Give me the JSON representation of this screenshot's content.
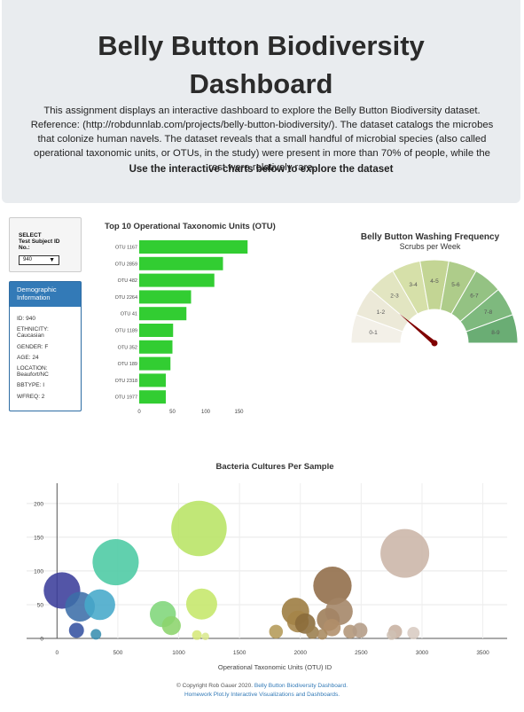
{
  "header": {
    "title_line1": "Belly Button Biodiversity",
    "title_line2": "Dashboard",
    "description": "This assignment displays an interactive dashboard to explore the Belly Button Biodiversity dataset. Reference: (http://robdunnlab.com/projects/belly-button-biodiversity/). The dataset catalogs the microbes that colonize human navels. The dataset reveals that a small handful of microbial species (also called operational taxonomic units, or OTUs, in the study) were present in more than 70% of people, while the rest were relatively rare.",
    "cta": "Use the interactive charts below to explore the dataset"
  },
  "selector": {
    "label_line1": "SELECT",
    "label_line2": "Test Subject ID",
    "label_line3": "No.:",
    "selected": "940",
    "arrow": "▼"
  },
  "demographics": {
    "heading_line1": "Demographic",
    "heading_line2": "Information",
    "id": "ID: 940",
    "ethnicity_label": "ETHNICITY:",
    "ethnicity_value": "Caucasian",
    "gender": "GENDER: F",
    "age": "AGE: 24",
    "location_label": "LOCATION:",
    "location_value": "Beaufort/NC",
    "bbtype": "BBTYPE: I",
    "wfreq": "WFREQ: 2"
  },
  "gauge": {
    "title": "Belly Button Washing Frequency",
    "subtitle": "Scrubs per Week",
    "value": 2,
    "segments": [
      "0-1",
      "1-2",
      "2-3",
      "3-4",
      "4-5",
      "5-6",
      "6-7",
      "7-8",
      "8-9"
    ],
    "colors": [
      "#f3f0e8",
      "#ece9d8",
      "#e2e5c1",
      "#d6e0a9",
      "#c3d594",
      "#aecc8a",
      "#94c283",
      "#7eb97e",
      "#6aad74"
    ],
    "needle_color": "#800000"
  },
  "chart_data": [
    {
      "type": "bar",
      "orientation": "horizontal",
      "title": "Top 10 Operational Taxonomic Units (OTU)",
      "categories": [
        "OTU 1167",
        "OTU 2859",
        "OTU 482",
        "OTU 2264",
        "OTU 41",
        "OTU 1189",
        "OTU 352",
        "OTU 189",
        "OTU 2318",
        "OTU 1977"
      ],
      "values": [
        163,
        126,
        113,
        78,
        71,
        51,
        50,
        47,
        40,
        40
      ],
      "xticks": [
        "0",
        "50",
        "100",
        "150"
      ],
      "xlim": [
        0,
        180
      ],
      "bar_color": "#32cd32",
      "grid": false
    },
    {
      "type": "scatter",
      "subtype": "bubble",
      "title": "Bacteria Cultures Per Sample",
      "xlabel": "Operational Taxonomic Units (OTU) ID",
      "ylabel": "",
      "xlim": [
        -250,
        3700
      ],
      "ylim": [
        0,
        230
      ],
      "xticks": [
        0,
        500,
        1000,
        1500,
        2000,
        2500,
        3000,
        3500
      ],
      "yticks": [
        0,
        50,
        100,
        150,
        200
      ],
      "grid": true,
      "points": [
        {
          "x": 41,
          "y": 71,
          "color": "#3b3d9b"
        },
        {
          "x": 189,
          "y": 47,
          "color": "#3c6ea8"
        },
        {
          "x": 352,
          "y": 50,
          "color": "#46a9c9"
        },
        {
          "x": 482,
          "y": 113,
          "color": "#4bcaa3"
        },
        {
          "x": 870,
          "y": 36,
          "color": "#7fd67a"
        },
        {
          "x": 940,
          "y": 19,
          "color": "#8cd46c"
        },
        {
          "x": 1167,
          "y": 163,
          "color": "#b8e464"
        },
        {
          "x": 1189,
          "y": 51,
          "color": "#c5e76a"
        },
        {
          "x": 1960,
          "y": 40,
          "color": "#9b7a3e"
        },
        {
          "x": 1980,
          "y": 25,
          "color": "#a58448"
        },
        {
          "x": 2040,
          "y": 22,
          "color": "#8a6b3a"
        },
        {
          "x": 2264,
          "y": 78,
          "color": "#8f6b47"
        },
        {
          "x": 2230,
          "y": 28,
          "color": "#9c7b55"
        },
        {
          "x": 2318,
          "y": 40,
          "color": "#a38465"
        },
        {
          "x": 2260,
          "y": 16,
          "color": "#b08e6a"
        },
        {
          "x": 2859,
          "y": 126,
          "color": "#cbb5a7"
        },
        {
          "x": 160,
          "y": 12,
          "color": "#3552a0"
        },
        {
          "x": 320,
          "y": 6,
          "color": "#3a8fb0"
        },
        {
          "x": 1150,
          "y": 5,
          "color": "#d6e87a"
        },
        {
          "x": 1220,
          "y": 3,
          "color": "#d9e890"
        },
        {
          "x": 1800,
          "y": 10,
          "color": "#b49a58"
        },
        {
          "x": 2100,
          "y": 9,
          "color": "#9a7d4c"
        },
        {
          "x": 2180,
          "y": 6,
          "color": "#a88a60"
        },
        {
          "x": 2410,
          "y": 10,
          "color": "#b29578"
        },
        {
          "x": 2490,
          "y": 12,
          "color": "#b39b85"
        },
        {
          "x": 2780,
          "y": 10,
          "color": "#c7b1a0"
        },
        {
          "x": 2750,
          "y": 5,
          "color": "#cfc0b4"
        },
        {
          "x": 2930,
          "y": 8,
          "color": "#d8cbc2"
        }
      ]
    }
  ],
  "footer": {
    "copyright": "© Copyright Rob Gauer 2020.",
    "link1": "Belly Button Biodiversity Dashboard.",
    "link2": "Homework Plot.ly Interactive Visualizations and Dashboards."
  }
}
